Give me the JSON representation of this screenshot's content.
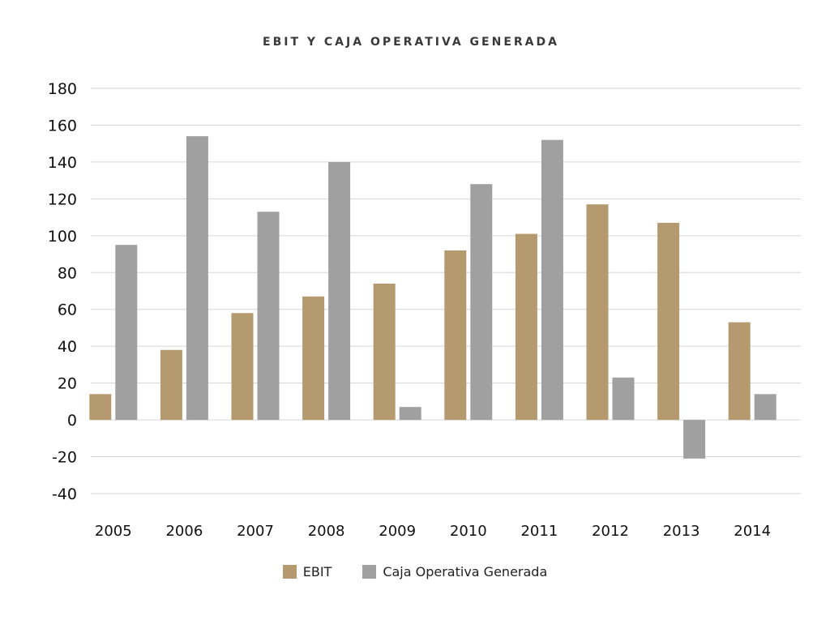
{
  "chart_data": {
    "type": "bar",
    "title": "EBIT Y CAJA OPERATIVA GENERADA",
    "xlabel": "",
    "ylabel": "",
    "ylim": [
      -40,
      180
    ],
    "yticks": [
      180,
      160,
      140,
      120,
      100,
      80,
      60,
      40,
      20,
      0,
      -20,
      -40
    ],
    "ytick_labels": [
      "180",
      "160",
      "140",
      "120",
      "100",
      "80",
      "60",
      "40",
      "20",
      "0",
      "-20",
      "-40"
    ],
    "grid": true,
    "legend_position": "bottom-center",
    "categories": [
      "2005",
      "2006",
      "2007",
      "2008",
      "2009",
      "2010",
      "2011",
      "2012",
      "2013",
      "2014"
    ],
    "series": [
      {
        "name": "EBIT",
        "color": "#b59a6f",
        "values": [
          14,
          38,
          58,
          67,
          74,
          92,
          101,
          117,
          107,
          53
        ]
      },
      {
        "name": "Caja Operativa Generada",
        "color": "#a0a0a0",
        "values": [
          95,
          154,
          113,
          140,
          7,
          128,
          152,
          23,
          -21,
          14
        ]
      }
    ]
  }
}
